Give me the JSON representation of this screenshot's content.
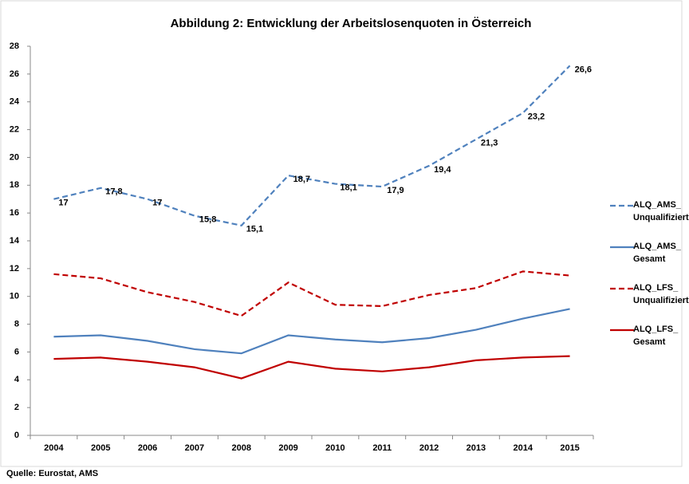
{
  "chart_data": {
    "type": "line",
    "title": "Abbildung 2: Entwicklung der Arbeitslosenquoten in Österreich",
    "source": "Quelle: Eurostat, AMS",
    "categories": [
      "2004",
      "2005",
      "2006",
      "2007",
      "2008",
      "2009",
      "2010",
      "2011",
      "2012",
      "2013",
      "2014",
      "2015"
    ],
    "ylim": [
      0,
      28
    ],
    "yticks": [
      0,
      2,
      4,
      6,
      8,
      10,
      12,
      14,
      16,
      18,
      20,
      22,
      24,
      26,
      28
    ],
    "grid": false,
    "legend": "right",
    "series": [
      {
        "name": "ALQ_AMS_ Unqualifiziert",
        "color": "#4f81bd",
        "dash": true,
        "values": [
          17,
          17.8,
          17,
          15.8,
          15.1,
          18.7,
          18.1,
          17.9,
          19.4,
          21.3,
          23.2,
          26.6
        ],
        "value_labels": [
          "17",
          "17,8",
          "17",
          "15,8",
          "15,1",
          "18,7",
          "18,1",
          "17,9",
          "19,4",
          "21,3",
          "23,2",
          "26,6"
        ]
      },
      {
        "name": "ALQ_AMS_ Gesamt",
        "color": "#4f81bd",
        "dash": false,
        "values": [
          7.1,
          7.2,
          6.8,
          6.2,
          5.9,
          7.2,
          6.9,
          6.7,
          7.0,
          7.6,
          8.4,
          9.1
        ]
      },
      {
        "name": "ALQ_LFS_ Unqualifiziert",
        "color": "#c00000",
        "dash": true,
        "values": [
          11.6,
          11.3,
          10.3,
          9.6,
          8.6,
          11.0,
          9.4,
          9.3,
          10.1,
          10.6,
          11.8,
          11.5
        ]
      },
      {
        "name": "ALQ_LFS_ Gesamt",
        "color": "#c00000",
        "dash": false,
        "values": [
          5.5,
          5.6,
          5.3,
          4.9,
          4.1,
          5.3,
          4.8,
          4.6,
          4.9,
          5.4,
          5.6,
          5.7
        ]
      }
    ]
  }
}
